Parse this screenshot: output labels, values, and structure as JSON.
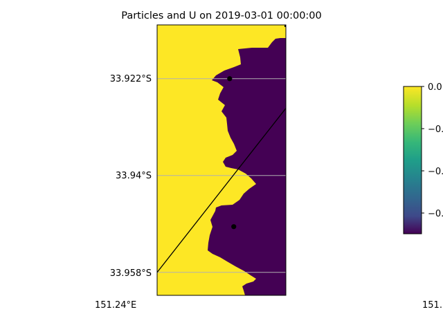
{
  "chart_data": {
    "type": "heatmap",
    "title": "Particles and U on 2019-03-01 00:00:00",
    "xlabel": "",
    "ylabel": "",
    "y_ticks": [
      "33.922°S",
      "33.94°S",
      "33.958°S"
    ],
    "x_ticks": [
      "151.24°E",
      "151."
    ],
    "ylim": [
      -33.962,
      -33.912
    ],
    "grid": "horizontal lines at latitude ticks",
    "colormap": "viridis",
    "colorbar": {
      "ticks": [
        "0.0",
        "−0.",
        "−0.",
        "−0."
      ],
      "top_color": "#fde725",
      "bottom_color": "#440154"
    },
    "field_colors": {
      "land": "#fde725",
      "water": "#440154"
    },
    "particles": [
      {
        "lon": 151.2625,
        "lat": -33.922
      },
      {
        "lon": 151.2633,
        "lat": -33.9495
      }
    ],
    "trajectory_line": [
      {
        "lon": 151.2483,
        "lat": -33.958
      },
      {
        "lon": 151.2735,
        "lat": -33.9275
      }
    ]
  }
}
